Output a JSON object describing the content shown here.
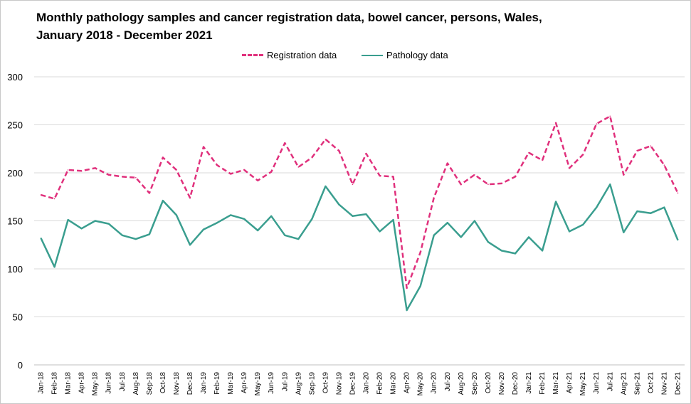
{
  "title_line1": "Monthly pathology samples and cancer registration data, bowel cancer, persons, Wales,",
  "title_line2": "January 2018 - December 2021",
  "legend": {
    "registration": "Registration data",
    "pathology": "Pathology data"
  },
  "colors": {
    "registration": "#e0307c",
    "pathology": "#3a9e8f",
    "grid": "#d9d9d9"
  },
  "chart_data": {
    "type": "line",
    "title": "Monthly pathology samples and cancer registration data, bowel cancer, persons, Wales, January 2018 - December 2021",
    "xlabel": "",
    "ylabel": "",
    "ylim": [
      0,
      300
    ],
    "yticks": [
      0,
      50,
      100,
      150,
      200,
      250,
      300
    ],
    "grid": true,
    "legend_position": "top",
    "categories": [
      "Jan-18",
      "Feb-18",
      "Mar-18",
      "Apr-18",
      "May-18",
      "Jun-18",
      "Jul-18",
      "Aug-18",
      "Sep-18",
      "Oct-18",
      "Nov-18",
      "Dec-18",
      "Jan-19",
      "Feb-19",
      "Mar-19",
      "Apr-19",
      "May-19",
      "Jun-19",
      "Jul-19",
      "Aug-19",
      "Sep-19",
      "Oct-19",
      "Nov-19",
      "Dec-19",
      "Jan-20",
      "Feb-20",
      "Mar-20",
      "Apr-20",
      "May-20",
      "Jun-20",
      "Jul-20",
      "Aug-20",
      "Sep-20",
      "Oct-20",
      "Nov-20",
      "Dec-20",
      "Jan-21",
      "Feb-21",
      "Mar-21",
      "Apr-21",
      "May-21",
      "Jun-21",
      "Jul-21",
      "Aug-21",
      "Sep-21",
      "Oct-21",
      "Nov-21",
      "Dec-21"
    ],
    "series": [
      {
        "name": "Registration data",
        "style": "dashed",
        "values": [
          177,
          173,
          203,
          202,
          205,
          198,
          196,
          195,
          179,
          216,
          203,
          174,
          227,
          208,
          199,
          203,
          192,
          201,
          231,
          206,
          216,
          235,
          223,
          188,
          220,
          197,
          196,
          80,
          117,
          174,
          210,
          188,
          198,
          188,
          189,
          196,
          221,
          213,
          252,
          205,
          219,
          251,
          259,
          198,
          223,
          228,
          208,
          179
        ]
      },
      {
        "name": "Pathology data",
        "style": "solid",
        "values": [
          132,
          102,
          151,
          142,
          150,
          147,
          135,
          131,
          136,
          171,
          156,
          125,
          141,
          148,
          156,
          152,
          140,
          155,
          135,
          131,
          152,
          186,
          167,
          155,
          157,
          139,
          151,
          57,
          82,
          135,
          148,
          133,
          150,
          128,
          119,
          116,
          133,
          119,
          170,
          139,
          146,
          164,
          188,
          138,
          160,
          158,
          164,
          130
        ]
      }
    ]
  }
}
